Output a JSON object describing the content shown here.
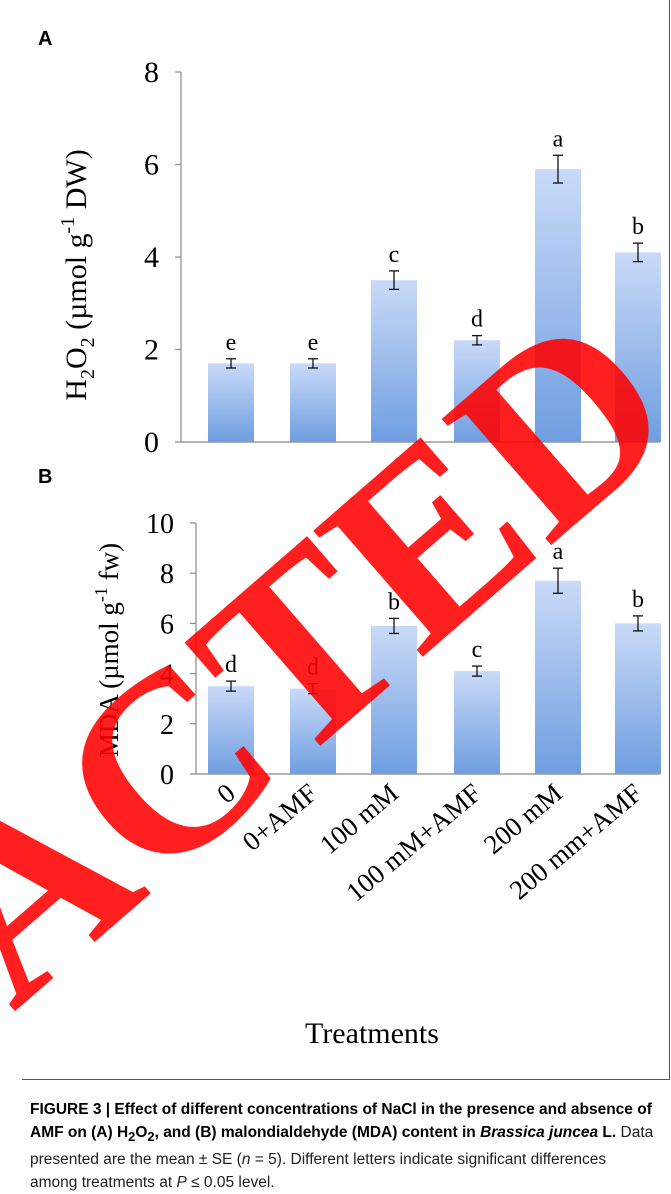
{
  "chart_data": [
    {
      "panel": "A",
      "type": "bar",
      "ylabel": "H2O2 (µmol g-1 DW)",
      "xlabel": "",
      "ylim": [
        0,
        8
      ],
      "yticks": [
        "0",
        "2",
        "4",
        "6",
        "8"
      ],
      "categories": [
        "0",
        "0+AMF",
        "100 mM",
        "100 mM+AMF",
        "200 mM",
        "200 mm+AMF"
      ],
      "values": [
        1.7,
        1.7,
        3.5,
        2.2,
        5.9,
        4.1
      ],
      "errors": [
        0.1,
        0.1,
        0.2,
        0.1,
        0.3,
        0.2
      ],
      "letters": [
        "e",
        "e",
        "c",
        "d",
        "a",
        "b"
      ]
    },
    {
      "panel": "B",
      "type": "bar",
      "ylabel": "MDA (µmol g-1 fw)",
      "xlabel": "Treatments",
      "ylim": [
        0,
        10
      ],
      "yticks": [
        "0",
        "2",
        "4",
        "6",
        "8",
        "10"
      ],
      "categories": [
        "0",
        "0+AMF",
        "100 mM",
        "100 mM+AMF",
        "200 mM",
        "200 mm+AMF"
      ],
      "values": [
        3.5,
        3.4,
        5.9,
        4.1,
        7.7,
        6.0
      ],
      "errors": [
        0.2,
        0.2,
        0.3,
        0.2,
        0.5,
        0.3
      ],
      "letters": [
        "d",
        "d",
        "b",
        "c",
        "a",
        "b"
      ]
    }
  ],
  "panel_labels": {
    "a": "A",
    "b": "B"
  },
  "axis_text": {
    "a_ylabel_main": "H",
    "a_ylabel_sub1": "2",
    "a_ylabel_mid": "O",
    "a_ylabel_sub2": "2",
    "a_ylabel_rest": " (µmol g",
    "a_ylabel_sup": "-1",
    "a_ylabel_end": " DW)",
    "b_ylabel_main": "MDA (µmol g",
    "b_ylabel_sup": "-1",
    "b_ylabel_end": "  fw)",
    "xlabel": "Treatments"
  },
  "caption": {
    "figure_label": "FIGURE 3 | Effect of different concentrations of NaCl in the presence and absence of AMF on (A) H",
    "sub1": "2",
    "mid1": "O",
    "sub2": "2",
    "bold_rest": ", and (B) malondialdehyde (MDA) content in ",
    "species": "Brassica juncea",
    "bold_end": " L.",
    "rest_a": " Data presented are the mean ± SE (",
    "n_var": "n",
    "rest_b": " = 5). Different letters indicate significant differences among treatments at ",
    "p_var": "P",
    "rest_c": " ≤ 0.05 level."
  },
  "stamp": {
    "text": "ACTED",
    "color": "#ff0000"
  },
  "colors": {
    "bar_top": "#c9daf8",
    "bar_bottom": "#6f9ee0",
    "axis": "#888888"
  }
}
